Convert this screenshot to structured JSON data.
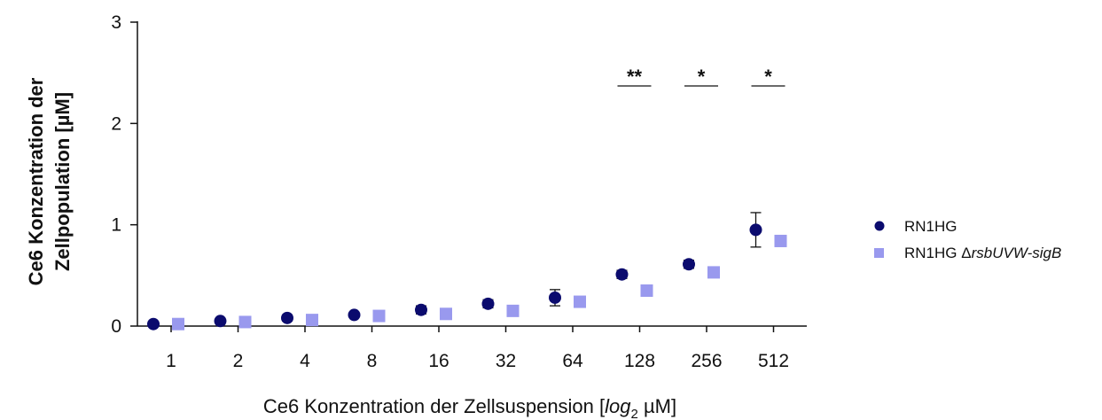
{
  "chart_data": {
    "type": "scatter",
    "xlabel_main": "Ce6 Konzentration der Zellsuspension [",
    "xlabel_log": "log",
    "xlabel_sub": "2",
    "xlabel_unit": " µM]",
    "ylabel_line1": "Ce6 Konzentration der",
    "ylabel_line2": "Zellpopulation [µM]",
    "categories": [
      "1",
      "2",
      "4",
      "8",
      "16",
      "32",
      "64",
      "128",
      "256",
      "512"
    ],
    "ylim": [
      0,
      3
    ],
    "yticks": [
      "0",
      "1",
      "2",
      "3"
    ],
    "grid": false,
    "legend_position": "right",
    "series": [
      {
        "name": "RN1HG",
        "marker": "circle",
        "color": "#0b0b6e",
        "values": [
          0.02,
          0.05,
          0.08,
          0.11,
          0.16,
          0.22,
          0.28,
          0.51,
          0.61,
          0.95
        ],
        "errors": [
          0.01,
          0.02,
          0.03,
          0.02,
          0.04,
          0.04,
          0.08,
          0.04,
          0.04,
          0.17
        ]
      },
      {
        "name_main": "RN1HG ",
        "name_delta": "Δ",
        "name_italic": "rsbUVW-sigB",
        "marker": "square",
        "color": "#9999ee",
        "values": [
          0.02,
          0.04,
          0.06,
          0.1,
          0.12,
          0.15,
          0.24,
          0.35,
          0.53,
          0.84
        ],
        "errors": [
          0.01,
          0.02,
          0.02,
          0.04,
          0.03,
          0.04,
          0.04,
          0.04,
          0.03,
          0.04
        ]
      }
    ],
    "significance": [
      {
        "category": "128",
        "label": "**"
      },
      {
        "category": "256",
        "label": "*"
      },
      {
        "category": "512",
        "label": "*"
      }
    ]
  }
}
